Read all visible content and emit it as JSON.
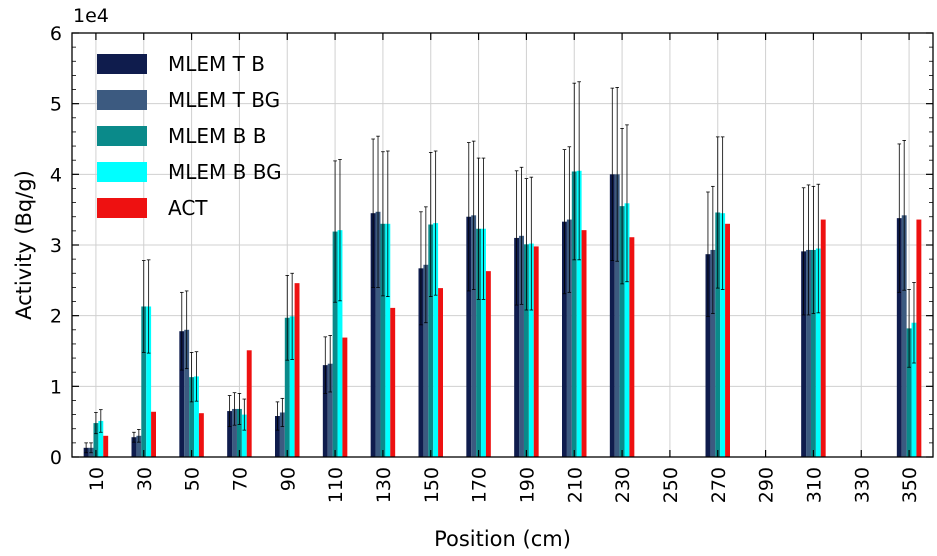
{
  "chart_data": {
    "type": "bar",
    "exponent_label": "1e4",
    "xlabel": "Position (cm)",
    "ylabel": "Activity (Bq/g)",
    "ylim": [
      0,
      6
    ],
    "yticks": [
      "0",
      "1",
      "2",
      "3",
      "4",
      "5",
      "6"
    ],
    "grid": true,
    "legend_position": "top-left",
    "categories": [
      "10",
      "30",
      "50",
      "70",
      "90",
      "110",
      "130",
      "150",
      "170",
      "190",
      "210",
      "230",
      "250",
      "270",
      "290",
      "310",
      "330",
      "350"
    ],
    "series": [
      {
        "name": "MLEM T B",
        "color": "#0f1c4d",
        "values": [
          0.13,
          0.28,
          1.78,
          0.65,
          0.58,
          1.3,
          3.45,
          2.67,
          3.4,
          3.1,
          3.33,
          4.0,
          null,
          2.87,
          null,
          2.91,
          null,
          3.38
        ],
        "errors": [
          0.07,
          0.07,
          0.55,
          0.22,
          0.2,
          0.4,
          1.05,
          0.8,
          1.05,
          0.95,
          1.02,
          1.22,
          null,
          0.88,
          null,
          0.9,
          null,
          1.05
        ]
      },
      {
        "name": "MLEM T BG",
        "color": "#3c5a80",
        "values": [
          0.13,
          0.3,
          1.8,
          0.68,
          0.63,
          1.32,
          3.47,
          2.72,
          3.42,
          3.13,
          3.36,
          4.0,
          null,
          2.93,
          null,
          2.93,
          null,
          3.42
        ],
        "errors": [
          0.07,
          0.09,
          0.55,
          0.23,
          0.2,
          0.4,
          1.07,
          0.82,
          1.05,
          0.97,
          1.03,
          1.23,
          null,
          0.9,
          null,
          0.92,
          null,
          1.06
        ]
      },
      {
        "name": "MLEM B B",
        "color": "#0a8a8a",
        "values": [
          0.48,
          2.13,
          1.13,
          0.68,
          1.97,
          3.19,
          3.3,
          3.29,
          3.23,
          3.01,
          4.04,
          3.55,
          null,
          3.46,
          null,
          2.93,
          null,
          1.82
        ],
        "errors": [
          0.15,
          0.65,
          0.35,
          0.22,
          0.6,
          1.0,
          1.02,
          1.02,
          1.0,
          0.93,
          1.25,
          1.1,
          null,
          1.07,
          null,
          0.9,
          null,
          0.55
        ]
      },
      {
        "name": "MLEM B BG",
        "color": "#00ffff",
        "values": [
          0.51,
          2.13,
          1.14,
          0.6,
          1.99,
          3.21,
          3.3,
          3.31,
          3.23,
          3.02,
          4.05,
          3.59,
          null,
          3.45,
          null,
          2.95,
          null,
          1.9
        ],
        "errors": [
          0.16,
          0.66,
          0.35,
          0.22,
          0.61,
          1.0,
          1.03,
          1.02,
          1.0,
          0.94,
          1.26,
          1.11,
          null,
          1.08,
          null,
          0.91,
          null,
          0.57
        ]
      },
      {
        "name": "ACT",
        "color": "#ee1111",
        "values": [
          0.3,
          0.64,
          0.62,
          1.51,
          2.46,
          1.69,
          2.11,
          2.39,
          2.63,
          2.98,
          3.21,
          3.11,
          null,
          3.3,
          null,
          3.36,
          null,
          3.36
        ],
        "errors": [
          null,
          null,
          null,
          null,
          null,
          null,
          null,
          null,
          null,
          null,
          null,
          null,
          null,
          null,
          null,
          null,
          null,
          null
        ]
      }
    ]
  }
}
